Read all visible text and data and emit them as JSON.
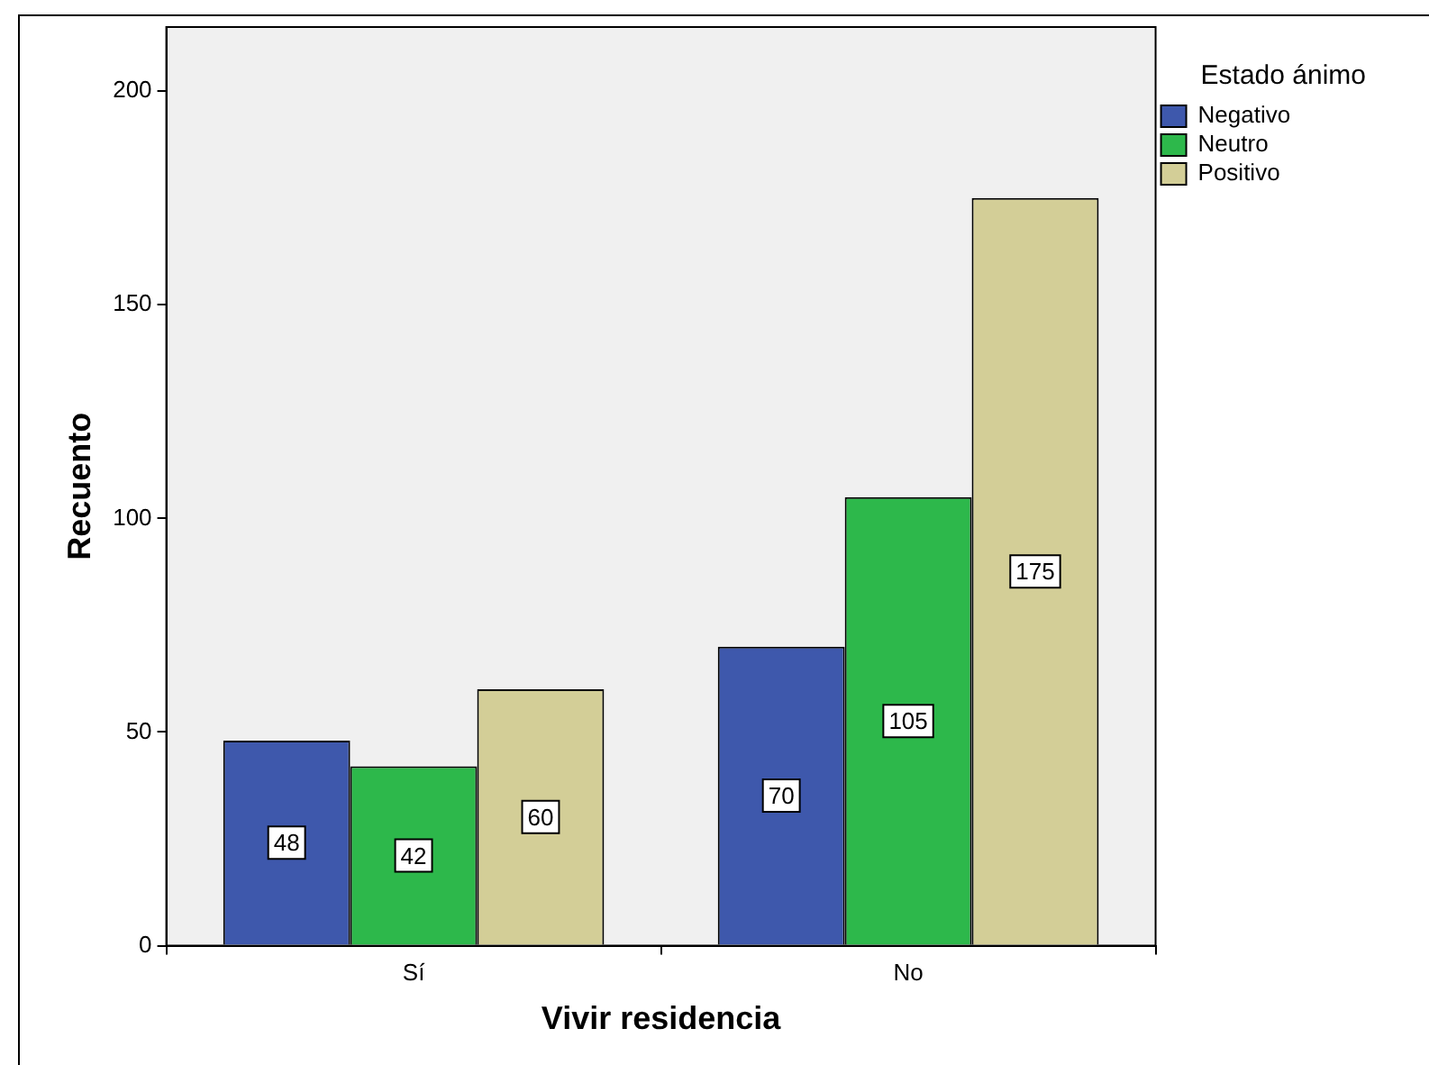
{
  "chart_data": {
    "type": "bar",
    "xlabel": "Vivir residencia",
    "ylabel": "Recuento",
    "legend_title": "Estado ánimo",
    "categories": [
      "Sí",
      "No"
    ],
    "series": [
      {
        "name": "Negativo",
        "color": "#3e58ac",
        "values": [
          48,
          70
        ]
      },
      {
        "name": "Neutro",
        "color": "#2db84b",
        "values": [
          42,
          105
        ]
      },
      {
        "name": "Positivo",
        "color": "#d3ce97",
        "values": [
          60,
          175
        ]
      }
    ],
    "ylim": [
      0,
      215
    ],
    "yticks": [
      0,
      50,
      100,
      150,
      200
    ],
    "grid": false,
    "legend": "top right",
    "data_labels": true
  }
}
